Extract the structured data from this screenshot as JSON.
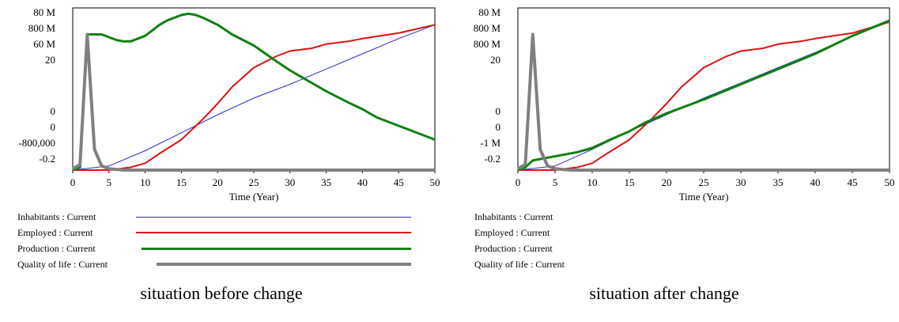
{
  "colors": {
    "inhabitants": "#2a2ac8",
    "employed": "#e01010",
    "production": "#108010",
    "quality": "#808080",
    "axis": "#000000"
  },
  "chart_data": [
    {
      "type": "line",
      "caption": "situation before change",
      "xlabel": "Time (Year)",
      "xlim": [
        0,
        50
      ],
      "x_ticks": [
        0,
        5,
        10,
        15,
        20,
        25,
        30,
        35,
        40,
        45,
        50
      ],
      "y_tick_labels": [
        "80 M",
        "800 M",
        "60 M",
        "20",
        "0",
        "0",
        "-800,000",
        "-0.2"
      ],
      "grid": false,
      "legend_position": "bottom",
      "series": [
        {
          "name": "Inhabitants : Current",
          "color_key": "inhabitants",
          "width": 1,
          "x": [
            0,
            5,
            10,
            15,
            20,
            25,
            30,
            35,
            40,
            45,
            50
          ],
          "y": [
            0.0,
            0.03,
            0.14,
            0.27,
            0.4,
            0.52,
            0.62,
            0.73,
            0.84,
            0.95,
            1.05
          ]
        },
        {
          "name": "Employed : Current",
          "color_key": "employed",
          "width": 2,
          "x": [
            0,
            5,
            8,
            10,
            12,
            15,
            18,
            20,
            22,
            25,
            28,
            30,
            33,
            35,
            38,
            40,
            45,
            50
          ],
          "y": [
            0.0,
            0.0,
            0.02,
            0.05,
            0.12,
            0.22,
            0.37,
            0.48,
            0.6,
            0.74,
            0.82,
            0.86,
            0.88,
            0.91,
            0.93,
            0.95,
            0.99,
            1.05
          ]
        },
        {
          "name": "Production : Current",
          "color_key": "production",
          "width": 3,
          "x": [
            0,
            1,
            2,
            3,
            4,
            5,
            6,
            7,
            8,
            9,
            10,
            11,
            12,
            13,
            14,
            15,
            16,
            17,
            18,
            20,
            22,
            25,
            28,
            30,
            32,
            35,
            38,
            40,
            42,
            45,
            48,
            50
          ],
          "y": [
            0.0,
            0.02,
            0.98,
            0.98,
            0.98,
            0.96,
            0.94,
            0.93,
            0.93,
            0.95,
            0.97,
            1.01,
            1.05,
            1.08,
            1.1,
            1.12,
            1.13,
            1.12,
            1.1,
            1.05,
            0.98,
            0.9,
            0.79,
            0.72,
            0.66,
            0.57,
            0.49,
            0.44,
            0.38,
            0.32,
            0.26,
            0.22
          ]
        },
        {
          "name": "Quality of life : Current",
          "color_key": "quality",
          "width": 4,
          "x": [
            0,
            1,
            2,
            3,
            4,
            5,
            7,
            10,
            20,
            50
          ],
          "y": [
            0.01,
            0.04,
            0.98,
            0.15,
            0.03,
            0.01,
            0.0,
            0.0,
            0.0,
            0.0
          ]
        }
      ]
    },
    {
      "type": "line",
      "caption": "situation after change",
      "xlabel": "Time (Year)",
      "xlim": [
        0,
        50
      ],
      "x_ticks": [
        0,
        5,
        10,
        15,
        20,
        25,
        30,
        35,
        40,
        45,
        50
      ],
      "y_tick_labels": [
        "80 M",
        "800 M",
        "800 M",
        "20",
        "0",
        "0",
        "-1 M",
        "-0.2"
      ],
      "grid": false,
      "legend_position": "bottom",
      "series": [
        {
          "name": "Inhabitants : Current",
          "color_key": "inhabitants",
          "width": 1,
          "x": [
            0,
            5,
            10,
            15,
            20,
            25,
            30,
            35,
            40,
            45,
            50
          ],
          "y": [
            0.0,
            0.03,
            0.15,
            0.28,
            0.4,
            0.52,
            0.63,
            0.74,
            0.85,
            0.97,
            1.07
          ]
        },
        {
          "name": "Employed : Current",
          "color_key": "employed",
          "width": 2,
          "x": [
            0,
            5,
            8,
            10,
            12,
            15,
            18,
            20,
            22,
            25,
            28,
            30,
            33,
            35,
            38,
            40,
            45,
            50
          ],
          "y": [
            0.0,
            0.0,
            0.02,
            0.05,
            0.12,
            0.22,
            0.37,
            0.48,
            0.6,
            0.74,
            0.82,
            0.86,
            0.88,
            0.91,
            0.93,
            0.95,
            0.99,
            1.07
          ]
        },
        {
          "name": "Production : Current",
          "color_key": "production",
          "width": 3,
          "x": [
            0,
            1,
            2,
            4,
            6,
            8,
            10,
            12,
            15,
            17,
            20,
            25,
            30,
            35,
            40,
            45,
            50
          ],
          "y": [
            0.0,
            0.02,
            0.07,
            0.09,
            0.11,
            0.13,
            0.16,
            0.21,
            0.28,
            0.34,
            0.41,
            0.51,
            0.62,
            0.73,
            0.84,
            0.97,
            1.08
          ]
        },
        {
          "name": "Quality of life : Current",
          "color_key": "quality",
          "width": 4,
          "x": [
            0,
            1,
            2,
            3,
            4,
            5,
            7,
            10,
            20,
            50
          ],
          "y": [
            0.01,
            0.04,
            0.98,
            0.15,
            0.03,
            0.01,
            0.0,
            0.0,
            0.0,
            0.0
          ]
        }
      ]
    }
  ]
}
